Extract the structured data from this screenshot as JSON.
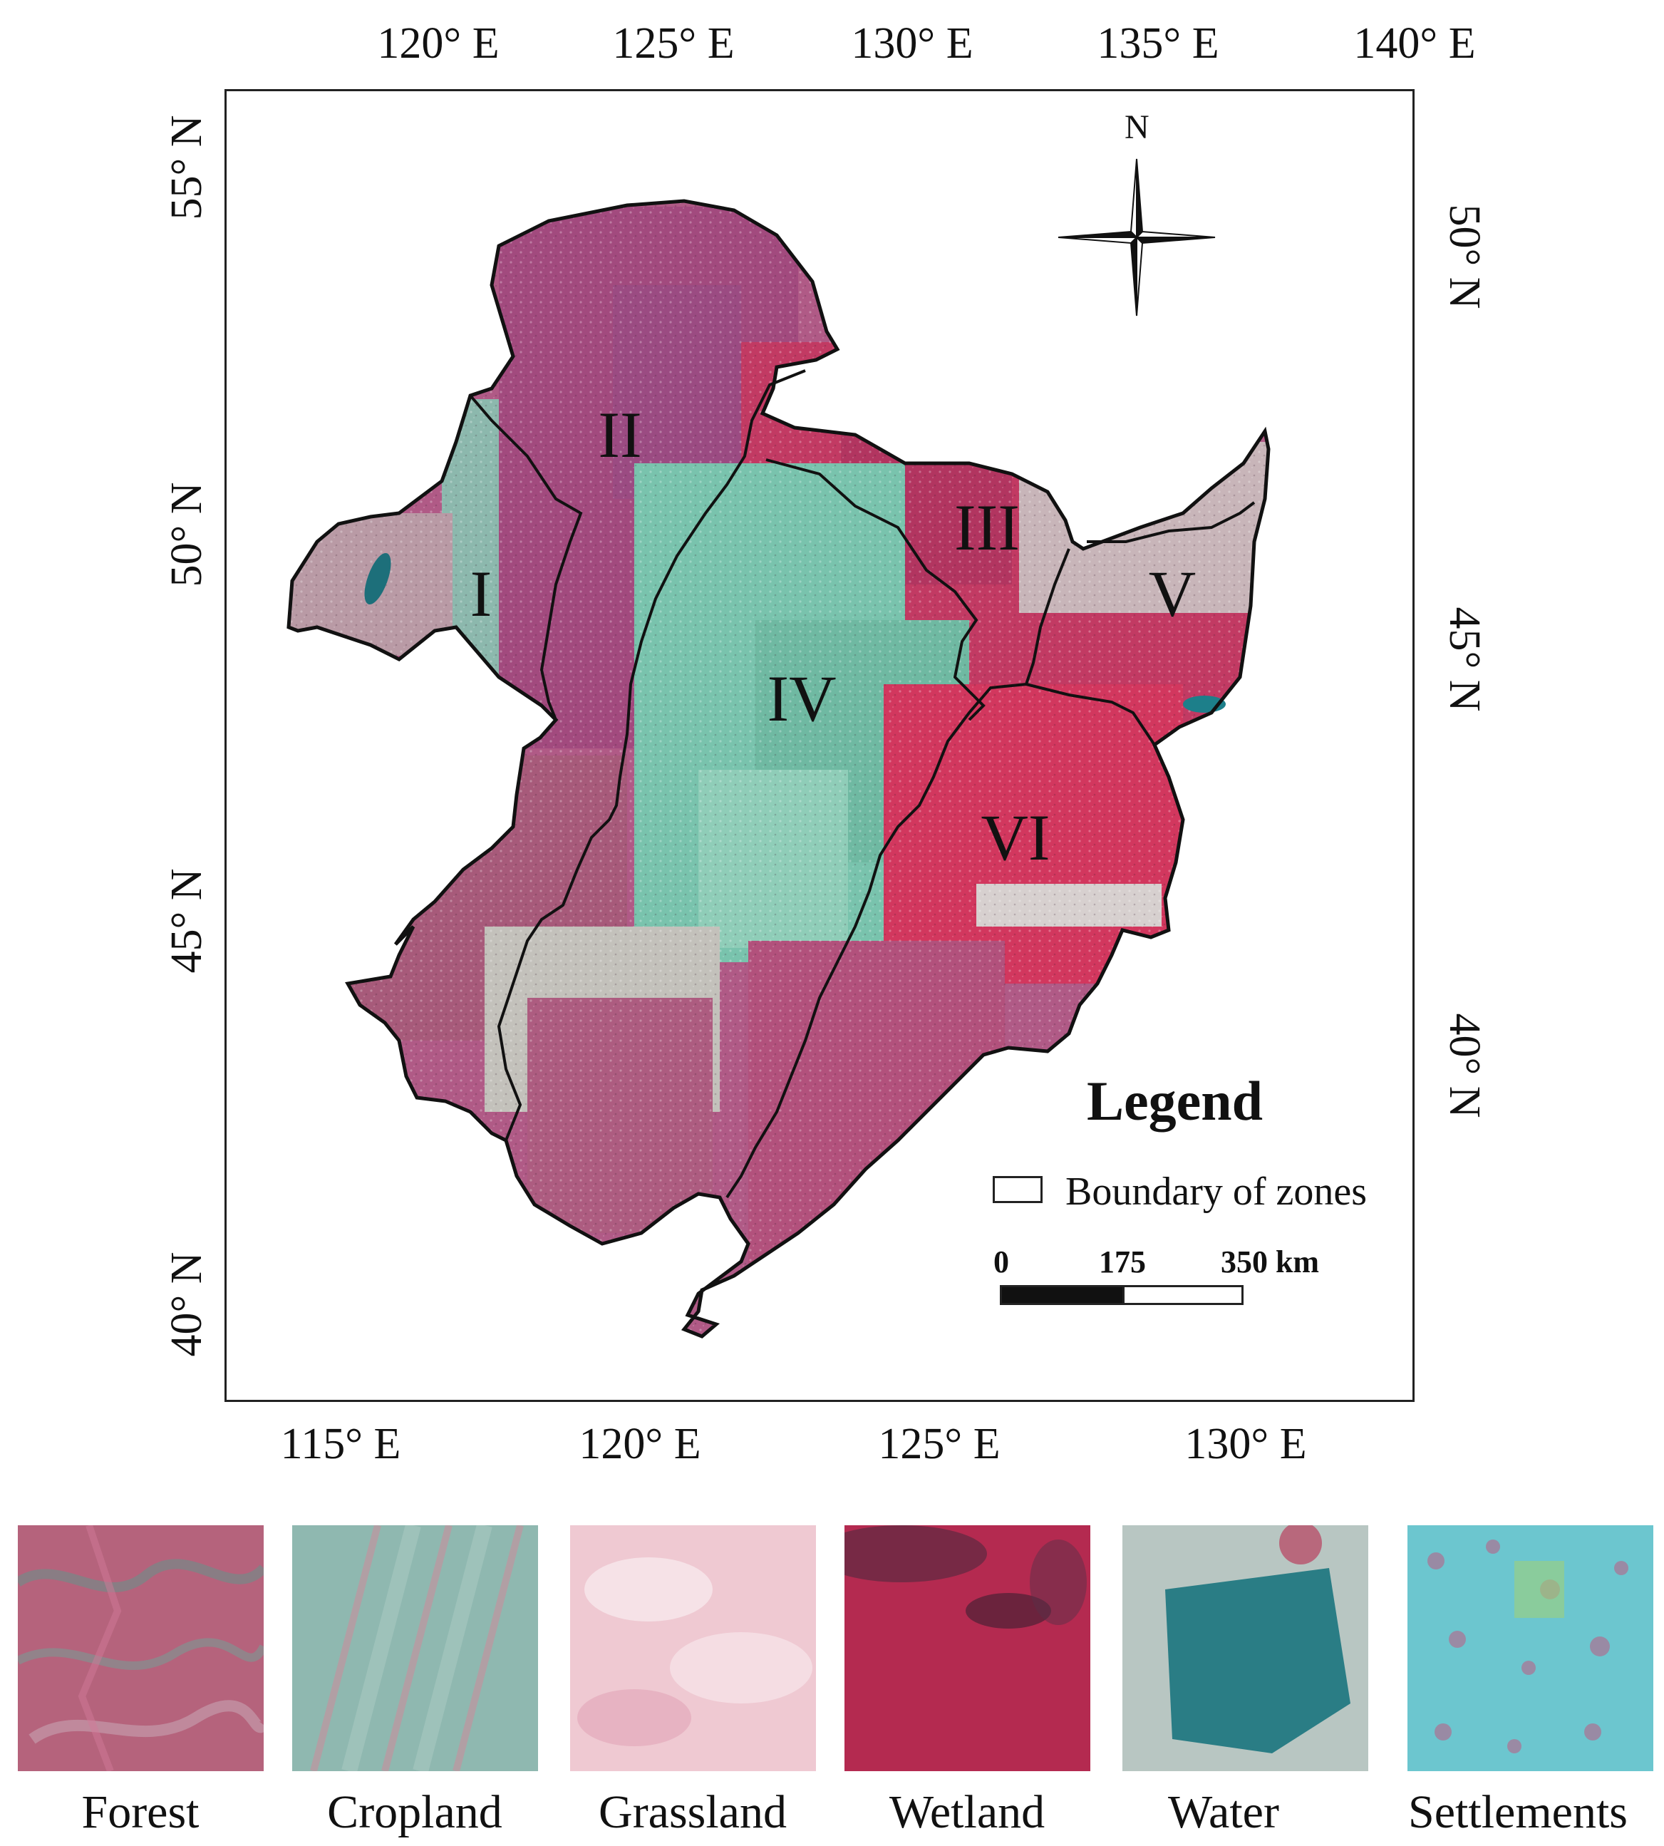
{
  "map": {
    "top_longitude_labels": [
      "120° E",
      "125° E",
      "130° E",
      "135° E",
      "140° E"
    ],
    "bottom_longitude_labels": [
      "115° E",
      "120° E",
      "125° E",
      "130° E"
    ],
    "left_latitude_labels": [
      "55° N",
      "50° N",
      "45° N",
      "40° N"
    ],
    "right_latitude_labels": [
      "50° N",
      "45° N",
      "40° N"
    ],
    "north_arrow_label": "N",
    "zones": [
      {
        "id": "I",
        "label": "I"
      },
      {
        "id": "II",
        "label": "II"
      },
      {
        "id": "III",
        "label": "III"
      },
      {
        "id": "IV",
        "label": "IV"
      },
      {
        "id": "V",
        "label": "V"
      },
      {
        "id": "VI",
        "label": "VI"
      }
    ],
    "colors": {
      "forest": "#b04a78",
      "cropland": "#7fc9b6",
      "wetland": "#d8345e",
      "water": "#1d7f8a",
      "grassland": "#c9b2b8",
      "boundary": "#111111"
    }
  },
  "legend": {
    "title": "Legend",
    "boundary_label": "Boundary of zones",
    "scale_labels": [
      "0",
      "175",
      "350 km"
    ]
  },
  "land_cover_samples": [
    {
      "label": "Forest",
      "color": "#b5637c"
    },
    {
      "label": "Cropland",
      "color": "#8fb8b0"
    },
    {
      "label": "Grassland",
      "color": "#efc9d2"
    },
    {
      "label": "Wetland",
      "color": "#b42a50"
    },
    {
      "label": "Water",
      "color": "#2a7d85"
    },
    {
      "label": "Settlements",
      "color": "#6cc6cf"
    }
  ]
}
